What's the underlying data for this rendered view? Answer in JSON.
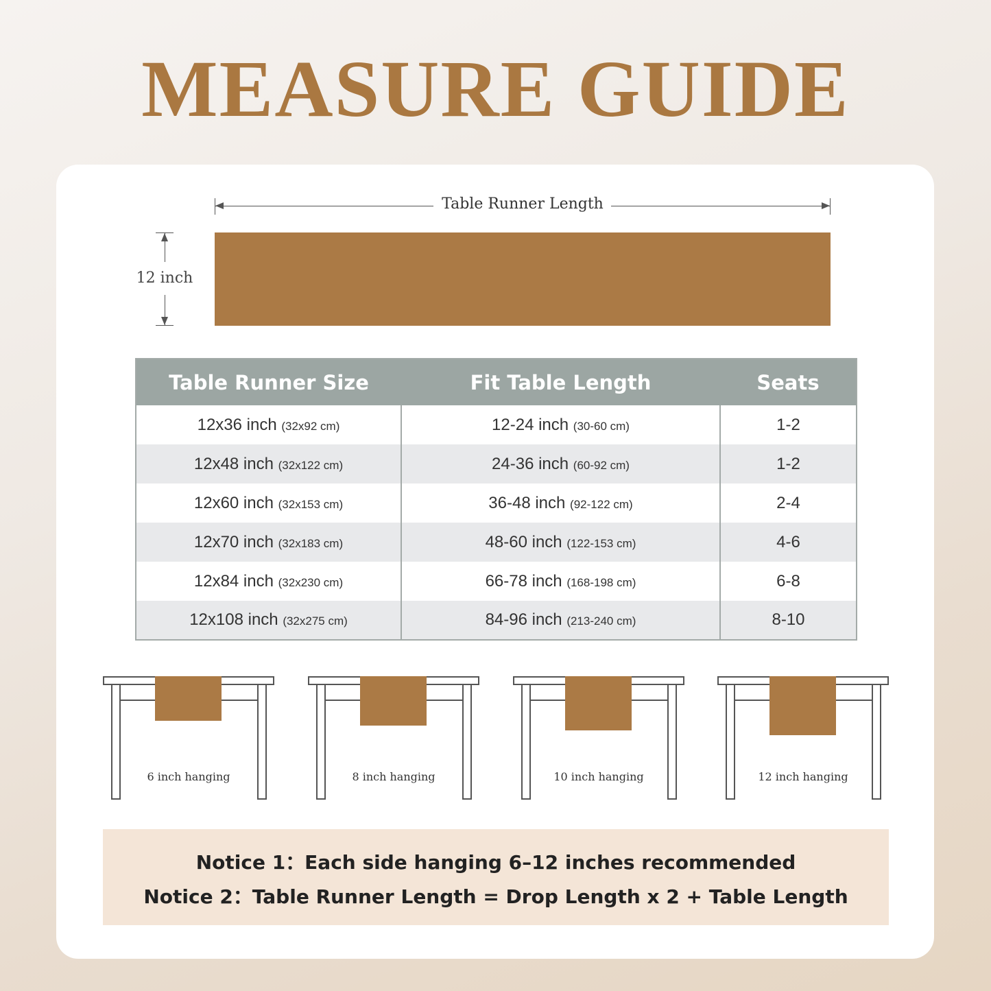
{
  "title": "MEASURE GUIDE",
  "diagram": {
    "length_label": "Table Runner Length",
    "width_label": "12 inch",
    "runner_color": "#ab7a45"
  },
  "table": {
    "headers": [
      "Table Runner Size",
      "Fit Table Length",
      "Seats"
    ],
    "rows": [
      {
        "size": "12x36 inch",
        "size_cm": "(32x92 cm)",
        "fit": "12-24 inch",
        "fit_cm": "(30-60 cm)",
        "seats": "1-2"
      },
      {
        "size": "12x48 inch",
        "size_cm": "(32x122 cm)",
        "fit": "24-36 inch",
        "fit_cm": "(60-92 cm)",
        "seats": "1-2"
      },
      {
        "size": "12x60 inch",
        "size_cm": "(32x153 cm)",
        "fit": "36-48 inch",
        "fit_cm": "(92-122 cm)",
        "seats": "2-4"
      },
      {
        "size": "12x70 inch",
        "size_cm": "(32x183 cm)",
        "fit": "48-60 inch",
        "fit_cm": "(122-153 cm)",
        "seats": "4-6"
      },
      {
        "size": "12x84 inch",
        "size_cm": "(32x230 cm)",
        "fit": "66-78 inch",
        "fit_cm": "(168-198 cm)",
        "seats": "6-8"
      },
      {
        "size": "12x108 inch",
        "size_cm": "(32x275 cm)",
        "fit": "84-96 inch",
        "fit_cm": "(213-240 cm)",
        "seats": "8-10"
      }
    ]
  },
  "hanging": [
    {
      "label": "6 inch hanging",
      "inches": 6
    },
    {
      "label": "8 inch hanging",
      "inches": 8
    },
    {
      "label": "10 inch hanging",
      "inches": 10
    },
    {
      "label": "12 inch hanging",
      "inches": 12
    }
  ],
  "notices": [
    "Notice 1：Each side hanging 6–12 inches recommended",
    "Notice 2：Table Runner Length = Drop Length x 2 + Table Length"
  ]
}
